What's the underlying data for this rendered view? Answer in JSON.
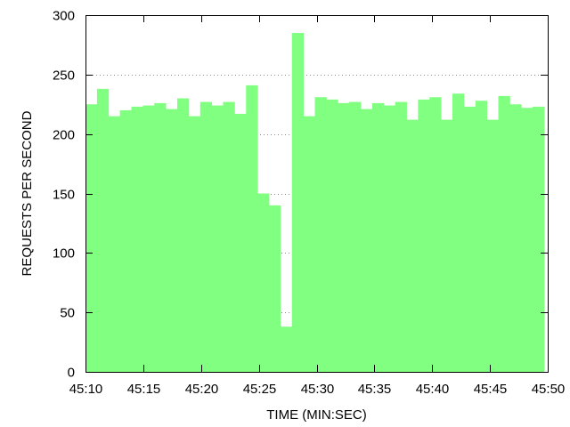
{
  "chart_data": {
    "type": "bar",
    "xlabel": "TIME (MIN:SEC)",
    "ylabel": "REQUESTS PER SECOND",
    "xlim": [
      "45:10",
      "45:50"
    ],
    "ylim": [
      0,
      300
    ],
    "yticks": [
      0,
      50,
      100,
      150,
      200,
      250,
      300
    ],
    "xticks": [
      "45:10",
      "45:15",
      "45:20",
      "45:25",
      "45:30",
      "45:35",
      "45:40",
      "45:45",
      "45:50"
    ],
    "grid": "dotted horizontal",
    "bar_color": "#80ff80",
    "categories": [
      "45:10",
      "45:11",
      "45:12",
      "45:13",
      "45:14",
      "45:15",
      "45:16",
      "45:17",
      "45:18",
      "45:19",
      "45:20",
      "45:21",
      "45:22",
      "45:23",
      "45:24",
      "45:25",
      "45:26",
      "45:27",
      "45:28",
      "45:29",
      "45:30",
      "45:31",
      "45:32",
      "45:33",
      "45:34",
      "45:35",
      "45:36",
      "45:37",
      "45:38",
      "45:39",
      "45:40",
      "45:41",
      "45:42",
      "45:43",
      "45:44",
      "45:45",
      "45:46",
      "45:47",
      "45:48",
      "45:49"
    ],
    "values": [
      225,
      238,
      215,
      220,
      223,
      224,
      226,
      221,
      230,
      215,
      227,
      224,
      227,
      217,
      241,
      150,
      140,
      38,
      285,
      215,
      231,
      229,
      226,
      227,
      221,
      226,
      224,
      227,
      212,
      229,
      231,
      212,
      234,
      223,
      228,
      212,
      232,
      225,
      222,
      223
    ]
  }
}
